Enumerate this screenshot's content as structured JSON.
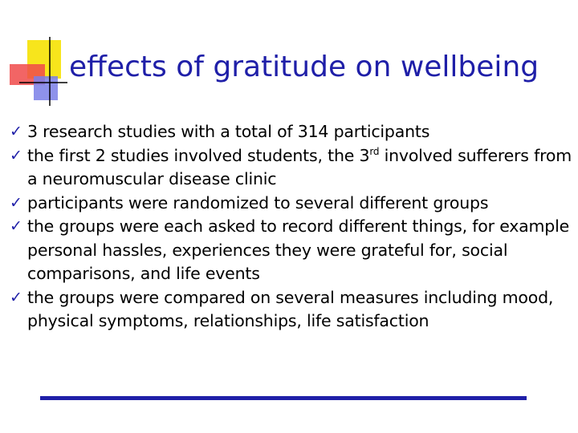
{
  "slide": {
    "title": "effects of gratitude on wellbeing",
    "accent_color": "#1f1fa8",
    "bullet_icon": "checkmark-icon",
    "bullet_glyph": "✓",
    "bullets": [
      {
        "parts": [
          "3 research studies with a total of 314 participants"
        ]
      },
      {
        "parts": [
          "the first 2 studies involved students, the 3",
          "rd",
          " involved sufferers from a neuromuscular disease clinic"
        ]
      },
      {
        "parts": [
          "participants were randomized to several different groups"
        ]
      },
      {
        "parts": [
          "the groups were each asked to record different things, for example personal hassles, experiences they were grateful for, social comparisons, and life events"
        ]
      },
      {
        "parts": [
          "the groups were compared on several measures including mood, physical symptoms, relationships, life satisfaction"
        ]
      }
    ]
  }
}
